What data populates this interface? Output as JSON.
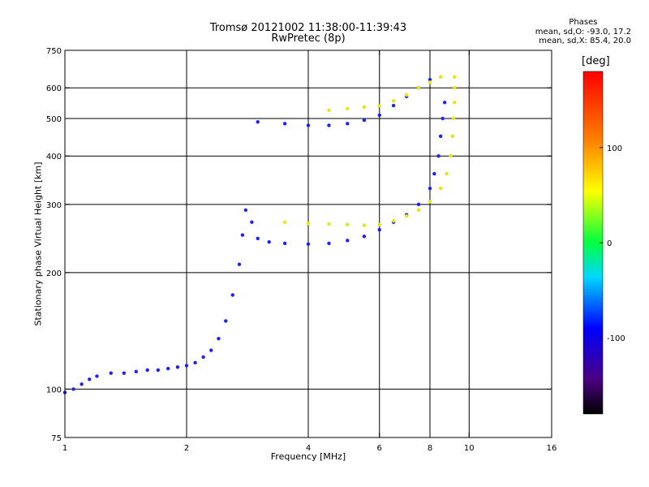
{
  "chart_data": {
    "type": "scatter",
    "title": "Tromsø 20121002 11:38:00-11:39:43",
    "subtitle": "RwPretec (8p)",
    "xlabel": "Frequency [MHz]",
    "ylabel": "Stationary phase Virtual Height [km]",
    "x_scale": "log",
    "y_scale": "log",
    "xlim": [
      1,
      16
    ],
    "ylim": [
      75,
      750
    ],
    "x_ticks": [
      1,
      2,
      4,
      6,
      8,
      10,
      16
    ],
    "y_ticks": [
      75,
      100,
      200,
      300,
      400,
      500,
      600,
      750
    ],
    "x_gridlines": [
      2,
      4,
      6,
      8,
      10
    ],
    "y_gridlines": [
      100,
      200,
      300,
      400,
      500,
      600
    ],
    "grid": true,
    "legend": {
      "header": "Phases",
      "lines": [
        "mean, sd,O: -93.0, 17.2",
        "mean, sd,X: 85.4, 20.0"
      ],
      "placement": "top-right"
    },
    "colorbar": {
      "label": "[deg]",
      "ticks": [
        100,
        0,
        -100
      ],
      "range": [
        -180,
        180
      ],
      "colormap": "rainbow"
    },
    "series": [
      {
        "name": "O",
        "color_phase": -100,
        "points": [
          [
            1.0,
            98
          ],
          [
            1.05,
            100
          ],
          [
            1.1,
            103
          ],
          [
            1.15,
            106
          ],
          [
            1.2,
            108
          ],
          [
            1.3,
            110
          ],
          [
            1.4,
            110
          ],
          [
            1.5,
            111
          ],
          [
            1.6,
            112
          ],
          [
            1.7,
            112
          ],
          [
            1.8,
            113
          ],
          [
            1.9,
            114
          ],
          [
            2.0,
            115
          ],
          [
            2.1,
            117
          ],
          [
            2.2,
            121
          ],
          [
            2.3,
            126
          ],
          [
            2.4,
            135
          ],
          [
            2.5,
            150
          ],
          [
            2.6,
            175
          ],
          [
            2.7,
            210
          ],
          [
            2.75,
            250
          ],
          [
            2.8,
            290
          ],
          [
            2.9,
            270
          ],
          [
            3.0,
            245
          ],
          [
            3.2,
            240
          ],
          [
            3.5,
            238
          ],
          [
            4.0,
            237
          ],
          [
            4.5,
            238
          ],
          [
            5.0,
            242
          ],
          [
            5.5,
            248
          ],
          [
            6.0,
            258
          ],
          [
            6.5,
            270
          ],
          [
            7.0,
            282
          ],
          [
            7.5,
            300
          ],
          [
            8.0,
            330
          ],
          [
            8.2,
            360
          ],
          [
            8.4,
            400
          ],
          [
            8.5,
            450
          ],
          [
            8.6,
            500
          ],
          [
            8.7,
            550
          ],
          [
            3.0,
            490
          ],
          [
            3.5,
            485
          ],
          [
            4.0,
            480
          ],
          [
            4.5,
            480
          ],
          [
            5.0,
            485
          ],
          [
            5.5,
            495
          ],
          [
            6.0,
            510
          ],
          [
            6.5,
            540
          ],
          [
            7.0,
            570
          ],
          [
            7.5,
            600
          ],
          [
            8.0,
            630
          ]
        ]
      },
      {
        "name": "X",
        "color_phase": 85,
        "points": [
          [
            3.5,
            270
          ],
          [
            4.0,
            268
          ],
          [
            4.5,
            267
          ],
          [
            5.0,
            266
          ],
          [
            5.5,
            265
          ],
          [
            6.0,
            266
          ],
          [
            6.5,
            272
          ],
          [
            7.0,
            280
          ],
          [
            7.5,
            290
          ],
          [
            8.0,
            305
          ],
          [
            8.5,
            330
          ],
          [
            8.8,
            360
          ],
          [
            9.0,
            400
          ],
          [
            9.1,
            450
          ],
          [
            9.15,
            500
          ],
          [
            9.2,
            550
          ],
          [
            9.2,
            600
          ],
          [
            9.2,
            640
          ],
          [
            4.5,
            525
          ],
          [
            5.0,
            530
          ],
          [
            5.5,
            535
          ],
          [
            6.0,
            540
          ],
          [
            6.5,
            555
          ],
          [
            7.0,
            575
          ],
          [
            7.5,
            600
          ],
          [
            8.0,
            620
          ],
          [
            8.5,
            640
          ]
        ]
      }
    ]
  }
}
